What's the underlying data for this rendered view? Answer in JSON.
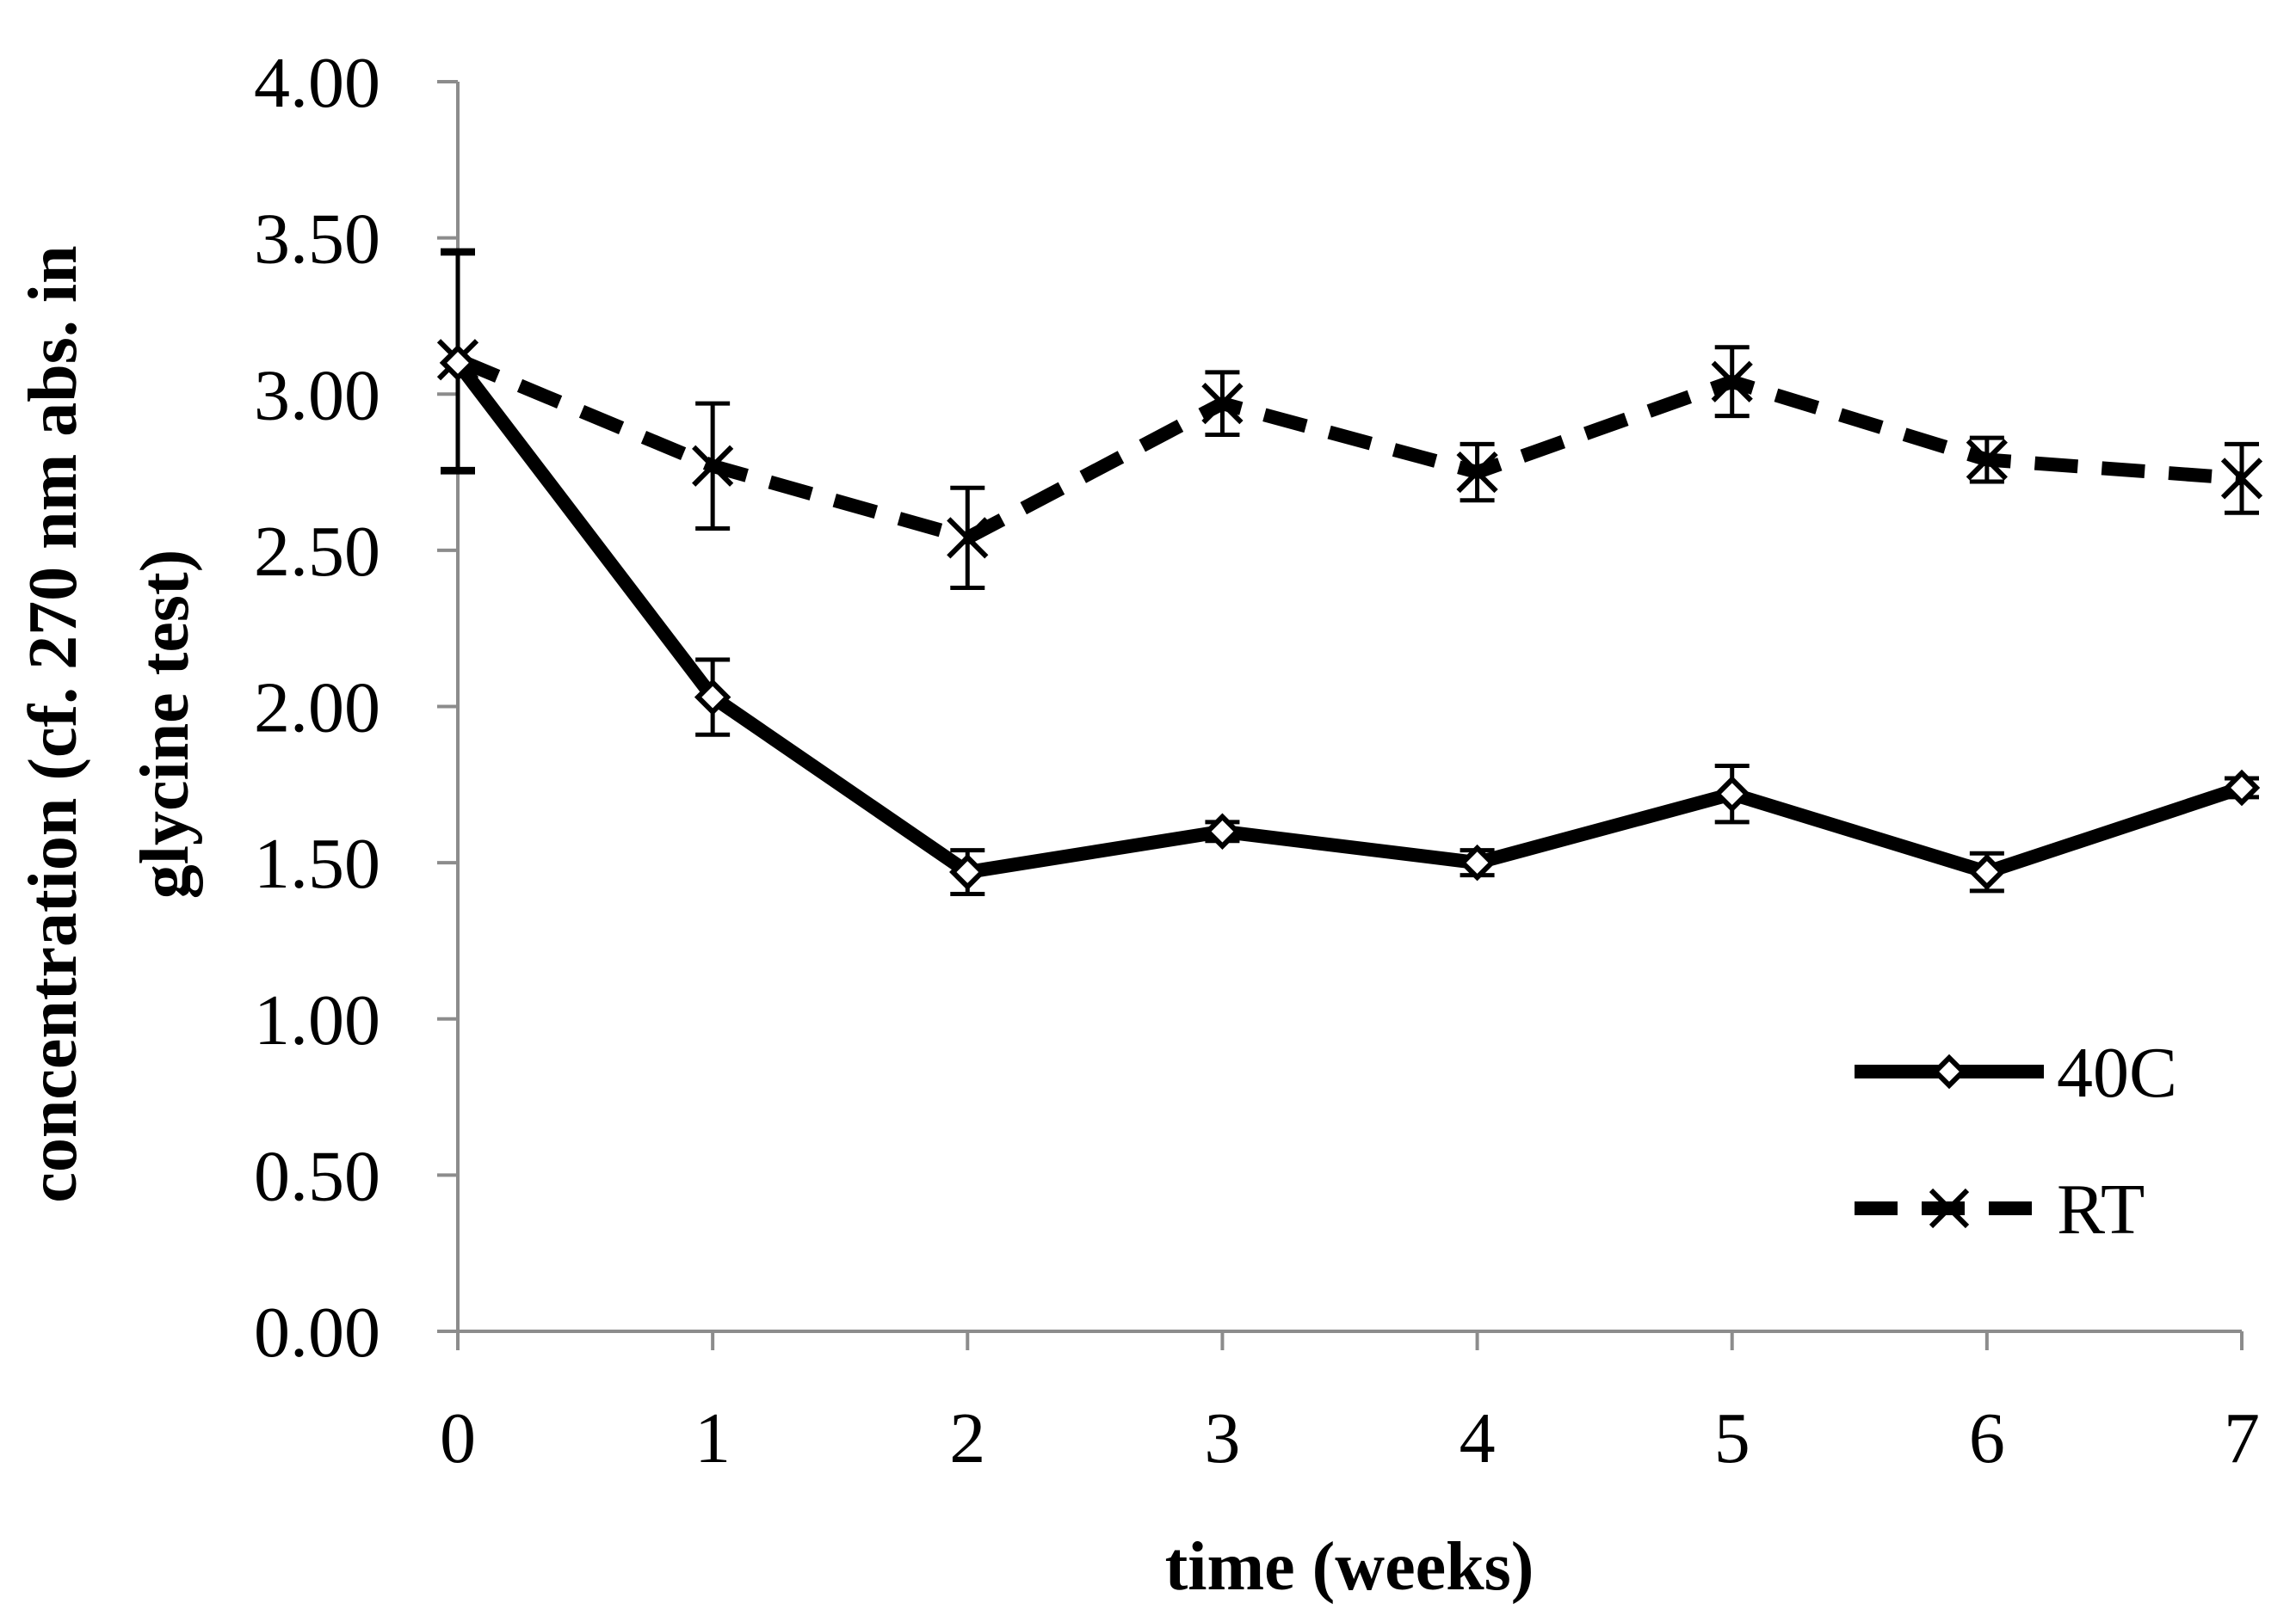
{
  "chart_data": {
    "type": "line",
    "title": "",
    "xlabel": "time (weeks)",
    "ylabel_lines": [
      "concentration (cf. 270 nm abs. in",
      "glycine  test)"
    ],
    "x": [
      0,
      1,
      2,
      3,
      4,
      5,
      6,
      7
    ],
    "xlim": [
      0,
      7
    ],
    "ylim": [
      0,
      4
    ],
    "x_tick_labels": [
      "0",
      "1",
      "2",
      "3",
      "4",
      "5",
      "6",
      "7"
    ],
    "y_tick_labels": [
      "0.00",
      "0.50",
      "1.00",
      "1.50",
      "2.00",
      "2.50",
      "3.00",
      "3.50",
      "4.00"
    ],
    "y_ticks": [
      0,
      0.5,
      1,
      1.5,
      2,
      2.5,
      3,
      3.5,
      4
    ],
    "grid": false,
    "legend_position": "bottom-right",
    "series": [
      {
        "name": "40C",
        "marker": "diamond",
        "line_style": "solid",
        "color": "#000000",
        "values": [
          3.1,
          2.03,
          1.47,
          1.6,
          1.5,
          1.72,
          1.47,
          1.74
        ],
        "error": [
          0.35,
          0.12,
          0.07,
          0.03,
          0.04,
          0.09,
          0.06,
          0.03
        ]
      },
      {
        "name": "RT",
        "marker": "x",
        "line_style": "dashed",
        "color": "#000000",
        "values": [
          3.11,
          2.77,
          2.54,
          2.97,
          2.75,
          3.04,
          2.79,
          2.73
        ],
        "error": [
          0.35,
          0.2,
          0.16,
          0.1,
          0.09,
          0.11,
          0.07,
          0.11
        ]
      }
    ]
  }
}
